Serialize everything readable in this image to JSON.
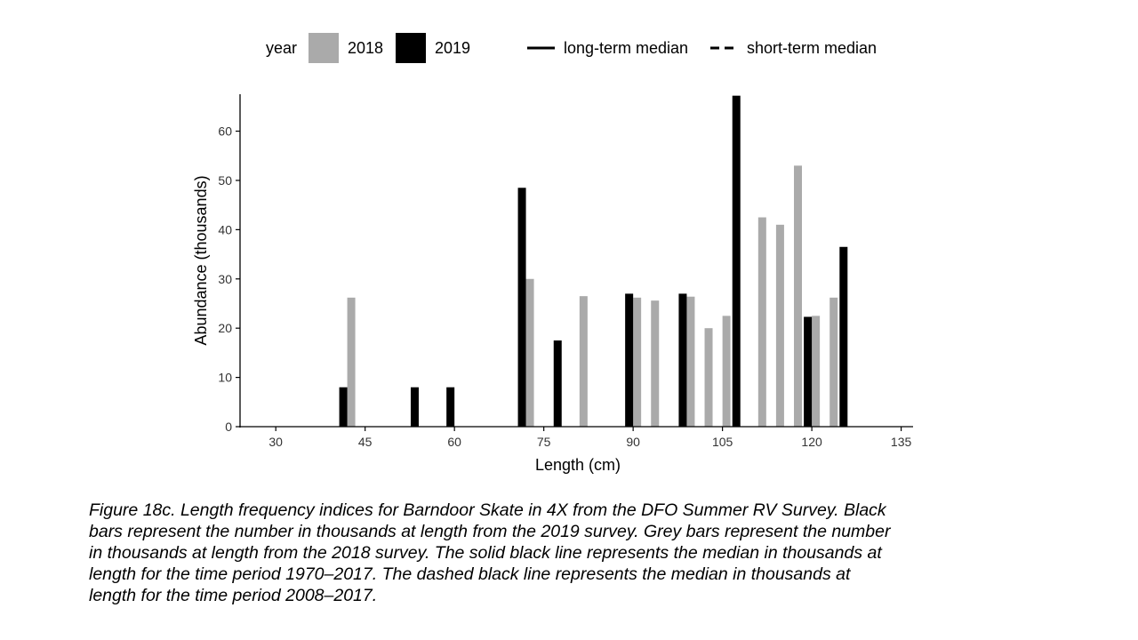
{
  "chart_data": {
    "type": "bar",
    "xlabel": "Length (cm)",
    "ylabel": "Abundance (thousands)",
    "xlim": [
      24,
      137
    ],
    "ylim": [
      0,
      67.5
    ],
    "x_ticks": [
      "30",
      "45",
      "60",
      "75",
      "90",
      "105",
      "120",
      "135"
    ],
    "y_ticks": [
      "0",
      "10",
      "20",
      "30",
      "40",
      "50",
      "60"
    ],
    "grid": false,
    "legend": {
      "placement": "top",
      "title": "year",
      "line_entries": [
        {
          "label": "long-term median",
          "style": "solid"
        },
        {
          "label": "short-term median",
          "style": "dashed"
        }
      ]
    },
    "series": [
      {
        "name": "2018",
        "color": "#aaaaaa",
        "x": [
          42,
          72,
          81,
          90,
          93,
          99,
          102,
          105,
          111,
          114,
          117,
          120,
          123
        ],
        "values": [
          26.2,
          30.0,
          26.5,
          26.2,
          25.6,
          26.4,
          20.0,
          22.5,
          42.5,
          41.0,
          53.0,
          22.5,
          26.2
        ]
      },
      {
        "name": "2019",
        "color": "#000000",
        "x": [
          42,
          54,
          60,
          72,
          78,
          90,
          99,
          108,
          120,
          126
        ],
        "values": [
          8.0,
          8.0,
          8.0,
          48.5,
          17.5,
          27.0,
          27.0,
          67.2,
          22.3,
          36.5
        ],
        "_note": "value pairs with x; 2019 bars drawn left of the 2018 bar at same x"
      }
    ]
  },
  "caption": {
    "lines": [
      "Figure 18c. Length frequency indices for Barndoor Skate in 4X from the DFO Summer RV Survey. Black",
      "bars represent the number in thousands at length from the 2019 survey. Grey bars represent the number",
      "in thousands at length from the 2018 survey. The solid black line represents the median in thousands at",
      "length for the time period 1970–2017. The dashed black line represents the median in thousands at",
      "length for the time period 2008–2017."
    ]
  }
}
